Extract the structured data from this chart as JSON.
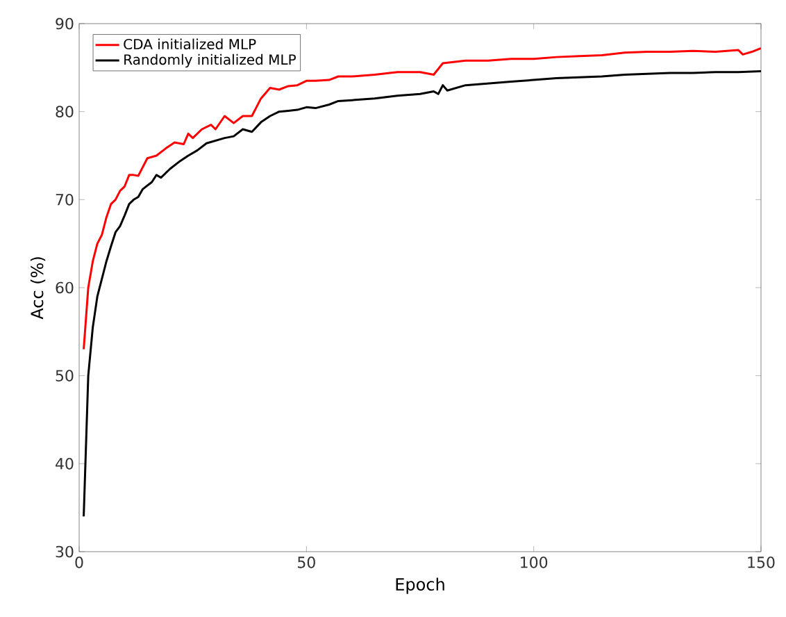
{
  "chart_data": {
    "type": "line",
    "xlabel": "Epoch",
    "ylabel": "Acc (%)",
    "xlim": [
      0,
      150
    ],
    "ylim": [
      30,
      90
    ],
    "xticks": [
      0,
      50,
      100,
      150
    ],
    "yticks": [
      30,
      40,
      50,
      60,
      70,
      80,
      90
    ],
    "legend": "top left",
    "grid": false,
    "marker": "none",
    "line_style": "solid",
    "series": [
      {
        "name": "CDA initialized MLP",
        "color": "#ff0000",
        "x": [
          1,
          2,
          3,
          4,
          5,
          6,
          7,
          8,
          9,
          10,
          11,
          12,
          13,
          15,
          17,
          19,
          21,
          23,
          24,
          25,
          27,
          29,
          30,
          32,
          34,
          36,
          38,
          40,
          42,
          44,
          46,
          48,
          50,
          52,
          55,
          57,
          60,
          65,
          70,
          75,
          78,
          80,
          85,
          90,
          95,
          100,
          105,
          110,
          115,
          120,
          125,
          130,
          135,
          140,
          145,
          146,
          148,
          150
        ],
        "values": [
          53,
          60,
          63,
          65,
          66,
          68,
          69.5,
          70,
          71,
          71.5,
          72.8,
          72.8,
          72.7,
          74.7,
          75,
          75.8,
          76.5,
          76.3,
          77.5,
          77,
          78,
          78.5,
          78,
          79.5,
          78.7,
          79.5,
          79.5,
          81.5,
          82.7,
          82.5,
          82.9,
          83,
          83.5,
          83.5,
          83.6,
          84,
          84,
          84.2,
          84.5,
          84.5,
          84.2,
          85.5,
          85.8,
          85.8,
          86,
          86,
          86.2,
          86.3,
          86.4,
          86.7,
          86.8,
          86.8,
          86.9,
          86.8,
          87,
          86.5,
          86.8,
          87.2
        ]
      },
      {
        "name": "Randomly initialized MLP",
        "color": "#000000",
        "x": [
          1,
          2,
          3,
          4,
          5,
          6,
          7,
          8,
          9,
          10,
          11,
          12,
          13,
          14,
          16,
          17,
          18,
          20,
          22,
          24,
          26,
          28,
          30,
          32,
          34,
          36,
          38,
          40,
          42,
          44,
          46,
          48,
          50,
          52,
          55,
          57,
          60,
          65,
          70,
          75,
          78,
          79,
          80,
          81,
          85,
          90,
          95,
          100,
          105,
          110,
          115,
          120,
          125,
          130,
          135,
          140,
          145,
          150
        ],
        "values": [
          34,
          50,
          55.5,
          59,
          61,
          63,
          64.7,
          66.3,
          67,
          68.2,
          69.5,
          70,
          70.3,
          71.2,
          72,
          72.8,
          72.5,
          73.5,
          74.3,
          75,
          75.6,
          76.4,
          76.7,
          77,
          77.2,
          78,
          77.7,
          78.8,
          79.5,
          80,
          80.1,
          80.2,
          80.5,
          80.4,
          80.8,
          81.2,
          81.3,
          81.5,
          81.8,
          82,
          82.3,
          82,
          83,
          82.4,
          83,
          83.2,
          83.4,
          83.6,
          83.8,
          83.9,
          84,
          84.2,
          84.3,
          84.4,
          84.4,
          84.5,
          84.5,
          84.6
        ]
      }
    ]
  }
}
